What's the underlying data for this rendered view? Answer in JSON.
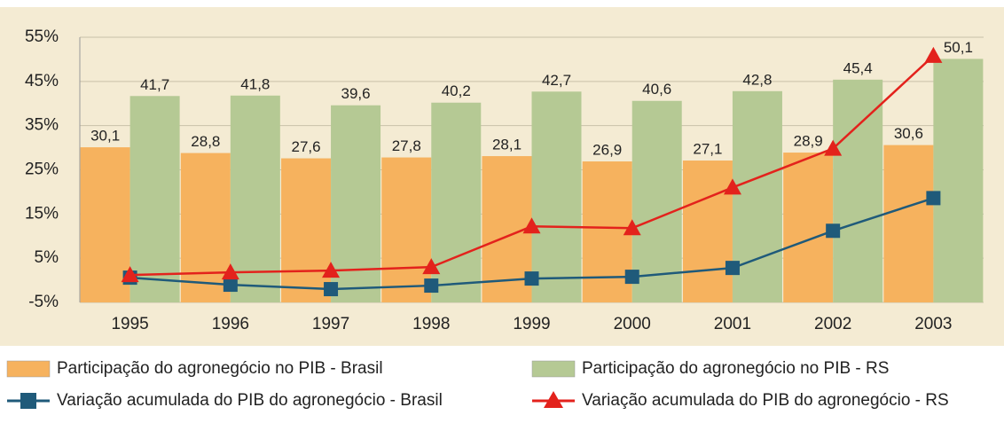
{
  "chart_data": {
    "type": "bar-line",
    "categories": [
      "1995",
      "1996",
      "1997",
      "1998",
      "1999",
      "2000",
      "2001",
      "2002",
      "2003"
    ],
    "series": [
      {
        "name": "Participação do agronegócio no PIB - Brasil",
        "kind": "bar",
        "color": "#f6b25e",
        "values": [
          30.1,
          28.8,
          27.6,
          27.8,
          28.1,
          26.9,
          27.1,
          28.9,
          30.6
        ],
        "value_labels": [
          "30,1",
          "28,8",
          "27,6",
          "27,8",
          "28,1",
          "26,9",
          "27,1",
          "28,9",
          "30,6"
        ]
      },
      {
        "name": "Participação do agronegócio no PIB - RS",
        "kind": "bar",
        "color": "#b5c994",
        "values": [
          41.7,
          41.8,
          39.6,
          40.2,
          42.7,
          40.6,
          42.8,
          45.4,
          50.1
        ],
        "value_labels": [
          "41,7",
          "41,8",
          "39,6",
          "40,2",
          "42,7",
          "40,6",
          "42,8",
          "45,4",
          "50,1"
        ]
      },
      {
        "name": "Variação acumulada do PIB do agronegócio - Brasil",
        "kind": "line",
        "marker": "square",
        "color": "#1f5a7a",
        "values": [
          0.6,
          -1,
          -2,
          -1.2,
          0.4,
          0.8,
          2.8,
          11.2,
          18.6
        ]
      },
      {
        "name": "Variação acumulada do PIB do agronegócio - RS",
        "kind": "line",
        "marker": "triangle",
        "color": "#e3221c",
        "values": [
          1.2,
          1.8,
          2.2,
          3,
          12.2,
          11.8,
          21,
          29.8,
          50.8
        ]
      }
    ],
    "ylim": [
      -5,
      55
    ],
    "yticks": [
      {
        "value": -5,
        "label": "-5%"
      },
      {
        "value": 5,
        "label": "5%"
      },
      {
        "value": 15,
        "label": "15%"
      },
      {
        "value": 25,
        "label": "25%"
      },
      {
        "value": 35,
        "label": "35%"
      },
      {
        "value": 45,
        "label": "45%"
      },
      {
        "value": 55,
        "label": "55%"
      }
    ],
    "grid": true
  }
}
